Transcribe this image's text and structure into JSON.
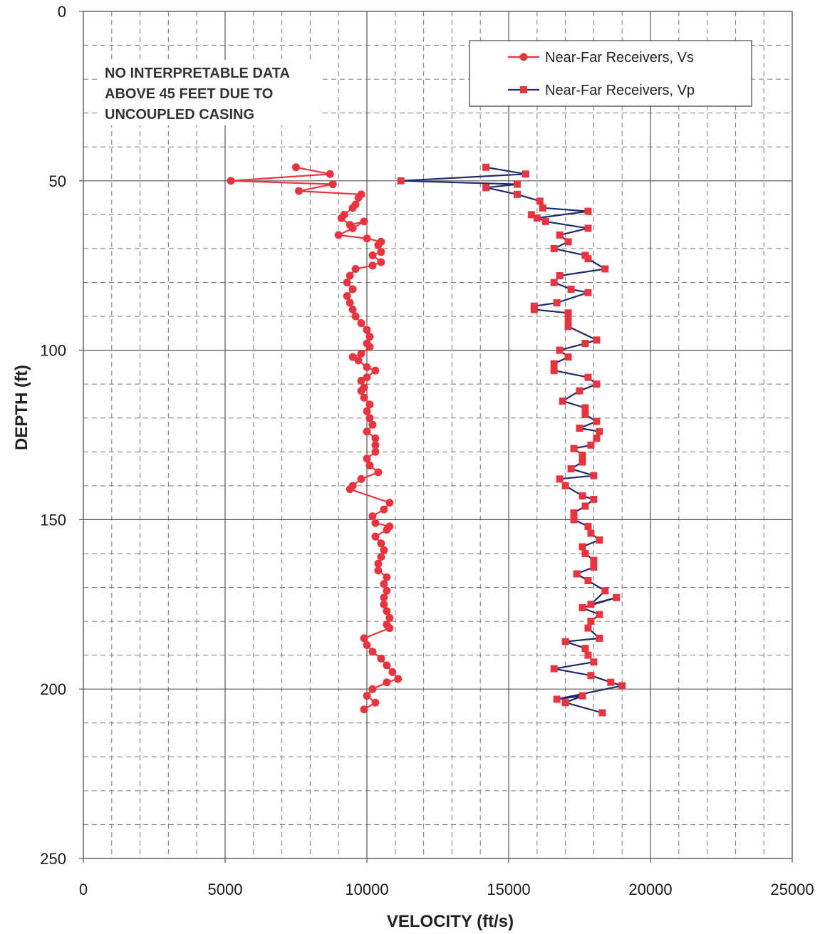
{
  "chart_data": {
    "type": "line",
    "xlabel": "VELOCITY (ft/s)",
    "ylabel": "DEPTH (ft)",
    "xlim": [
      0,
      25000
    ],
    "ylim": [
      0,
      250
    ],
    "y_inverted": true,
    "x_ticks": [
      "0",
      "5000",
      "10000",
      "15000",
      "20000",
      "25000"
    ],
    "y_ticks": [
      "0",
      "50",
      "100",
      "150",
      "200",
      "250"
    ],
    "grid": true,
    "legend_position": "top-right",
    "annotation": [
      "NO INTERPRETABLE DATA",
      "ABOVE 45 FEET DUE TO",
      "UNCOUPLED CASING"
    ],
    "series": [
      {
        "name": "Near-Far Receivers, Vs",
        "color": "#e8343f",
        "marker": "circle",
        "points": [
          [
            7500,
            46
          ],
          [
            8700,
            48
          ],
          [
            5200,
            50
          ],
          [
            8800,
            51
          ],
          [
            7600,
            53
          ],
          [
            9800,
            54
          ],
          [
            9700,
            55
          ],
          [
            9600,
            57
          ],
          [
            9500,
            58
          ],
          [
            9200,
            60
          ],
          [
            9100,
            61
          ],
          [
            9400,
            63
          ],
          [
            9900,
            62
          ],
          [
            9500,
            64
          ],
          [
            9000,
            66
          ],
          [
            10000,
            67
          ],
          [
            10500,
            68
          ],
          [
            10400,
            69
          ],
          [
            10500,
            71
          ],
          [
            10200,
            72
          ],
          [
            10500,
            74
          ],
          [
            10200,
            75
          ],
          [
            9600,
            76
          ],
          [
            9400,
            78
          ],
          [
            9300,
            80
          ],
          [
            9500,
            82
          ],
          [
            9300,
            84
          ],
          [
            9400,
            86
          ],
          [
            9500,
            88
          ],
          [
            9600,
            90
          ],
          [
            9800,
            92
          ],
          [
            10000,
            94
          ],
          [
            10100,
            96
          ],
          [
            10000,
            98
          ],
          [
            10100,
            99
          ],
          [
            9800,
            101
          ],
          [
            9500,
            102
          ],
          [
            9700,
            103
          ],
          [
            10000,
            105
          ],
          [
            10300,
            106
          ],
          [
            10000,
            108
          ],
          [
            9800,
            109
          ],
          [
            9900,
            111
          ],
          [
            9800,
            112
          ],
          [
            9900,
            114
          ],
          [
            10100,
            116
          ],
          [
            10000,
            118
          ],
          [
            10100,
            120
          ],
          [
            10200,
            122
          ],
          [
            10000,
            124
          ],
          [
            10300,
            126
          ],
          [
            10300,
            128
          ],
          [
            10300,
            130
          ],
          [
            10000,
            132
          ],
          [
            10100,
            134
          ],
          [
            10400,
            136
          ],
          [
            9800,
            138
          ],
          [
            9500,
            140
          ],
          [
            9400,
            141
          ],
          [
            10800,
            145
          ],
          [
            10600,
            147
          ],
          [
            10200,
            149
          ],
          [
            10300,
            151
          ],
          [
            10800,
            152
          ],
          [
            10700,
            153
          ],
          [
            10300,
            155
          ],
          [
            10500,
            157
          ],
          [
            10600,
            159
          ],
          [
            10500,
            161
          ],
          [
            10400,
            163
          ],
          [
            10400,
            165
          ],
          [
            10700,
            167
          ],
          [
            10600,
            169
          ],
          [
            10700,
            171
          ],
          [
            10600,
            173
          ],
          [
            10600,
            175
          ],
          [
            10700,
            177
          ],
          [
            10800,
            179
          ],
          [
            10700,
            181
          ],
          [
            10800,
            182
          ],
          [
            9900,
            185
          ],
          [
            10000,
            187
          ],
          [
            10200,
            189
          ],
          [
            10500,
            191
          ],
          [
            10700,
            193
          ],
          [
            10900,
            195
          ],
          [
            11100,
            197
          ],
          [
            10700,
            198
          ],
          [
            10200,
            200
          ],
          [
            10000,
            202
          ],
          [
            10300,
            204
          ],
          [
            9900,
            206
          ]
        ]
      },
      {
        "name": "Near-Far Receivers, Vp",
        "color": "#1f2a6b",
        "marker_color": "#e8343f",
        "marker": "square",
        "points": [
          [
            14200,
            46
          ],
          [
            15600,
            48
          ],
          [
            11200,
            50
          ],
          [
            15300,
            51
          ],
          [
            14200,
            52
          ],
          [
            15300,
            54
          ],
          [
            16100,
            56
          ],
          [
            16200,
            58
          ],
          [
            17800,
            59
          ],
          [
            16000,
            61
          ],
          [
            15800,
            60
          ],
          [
            16300,
            62
          ],
          [
            17800,
            64
          ],
          [
            16800,
            66
          ],
          [
            17100,
            68
          ],
          [
            16600,
            70
          ],
          [
            17700,
            72
          ],
          [
            17800,
            73
          ],
          [
            18400,
            76
          ],
          [
            16800,
            78
          ],
          [
            16600,
            80
          ],
          [
            17200,
            82
          ],
          [
            17800,
            83
          ],
          [
            16700,
            86
          ],
          [
            15900,
            87
          ],
          [
            15900,
            88
          ],
          [
            17100,
            89
          ],
          [
            17100,
            91
          ],
          [
            17100,
            93
          ],
          [
            18100,
            97
          ],
          [
            17700,
            98
          ],
          [
            16800,
            100
          ],
          [
            17100,
            102
          ],
          [
            16600,
            104
          ],
          [
            16600,
            106
          ],
          [
            17800,
            108
          ],
          [
            18100,
            110
          ],
          [
            17500,
            112
          ],
          [
            16900,
            115
          ],
          [
            17700,
            117
          ],
          [
            17700,
            119
          ],
          [
            18100,
            121
          ],
          [
            17500,
            123
          ],
          [
            18200,
            124
          ],
          [
            18100,
            126
          ],
          [
            17900,
            128
          ],
          [
            17300,
            129
          ],
          [
            17600,
            131
          ],
          [
            17600,
            133
          ],
          [
            17200,
            135
          ],
          [
            18000,
            137
          ],
          [
            16800,
            138
          ],
          [
            17000,
            140
          ],
          [
            17600,
            143
          ],
          [
            18000,
            144
          ],
          [
            17700,
            146
          ],
          [
            17300,
            148
          ],
          [
            17300,
            150
          ],
          [
            17800,
            152
          ],
          [
            17900,
            154
          ],
          [
            18200,
            156
          ],
          [
            17600,
            158
          ],
          [
            17700,
            160
          ],
          [
            18000,
            162
          ],
          [
            18000,
            164
          ],
          [
            17400,
            166
          ],
          [
            17800,
            168
          ],
          [
            18400,
            171
          ],
          [
            17900,
            175
          ],
          [
            18800,
            173
          ],
          [
            17600,
            176
          ],
          [
            18200,
            178
          ],
          [
            17900,
            180
          ],
          [
            17800,
            182
          ],
          [
            18200,
            185
          ],
          [
            17000,
            186
          ],
          [
            17700,
            188
          ],
          [
            17800,
            190
          ],
          [
            18000,
            192
          ],
          [
            16600,
            194
          ],
          [
            17900,
            196
          ],
          [
            18600,
            198
          ],
          [
            19000,
            199
          ],
          [
            16700,
            203
          ],
          [
            17600,
            202
          ],
          [
            17000,
            204
          ],
          [
            18300,
            207
          ]
        ]
      }
    ]
  }
}
